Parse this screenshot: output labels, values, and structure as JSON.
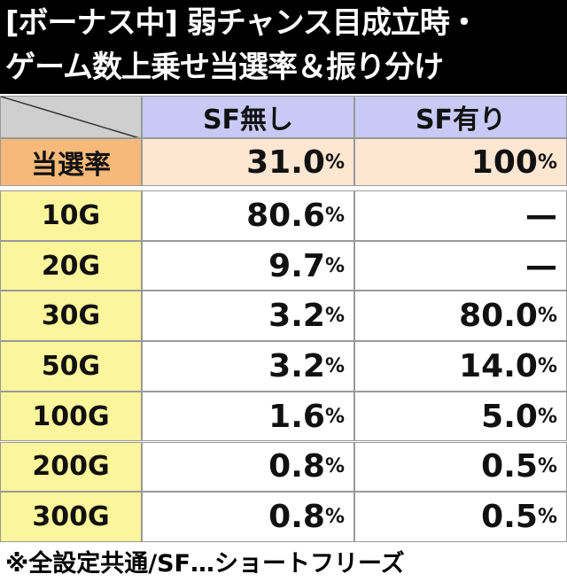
{
  "header": {
    "title_lines": [
      "[ボーナス中] 弱チャンス目成立時・",
      "ゲーム数上乗せ当選率＆振り分け"
    ]
  },
  "table": {
    "columns": [
      "SF無し",
      "SF有り"
    ],
    "summary": {
      "label": "当選率",
      "cells": [
        "31.0%",
        "100%"
      ]
    },
    "rows": [
      [
        "10G",
        "80.6%",
        "—"
      ],
      [
        "20G",
        "9.7%",
        "—"
      ],
      [
        "30G",
        "3.2%",
        "80.0%"
      ],
      [
        "50G",
        "3.2%",
        "14.0%"
      ],
      [
        "100G",
        "1.6%",
        "5.0%"
      ],
      [
        "200G",
        "0.8%",
        "0.5%"
      ],
      [
        "300G",
        "0.8%",
        "0.5%"
      ]
    ]
  },
  "footer": {
    "note": "※全設定共通/SF…ショートフリーズ"
  }
}
